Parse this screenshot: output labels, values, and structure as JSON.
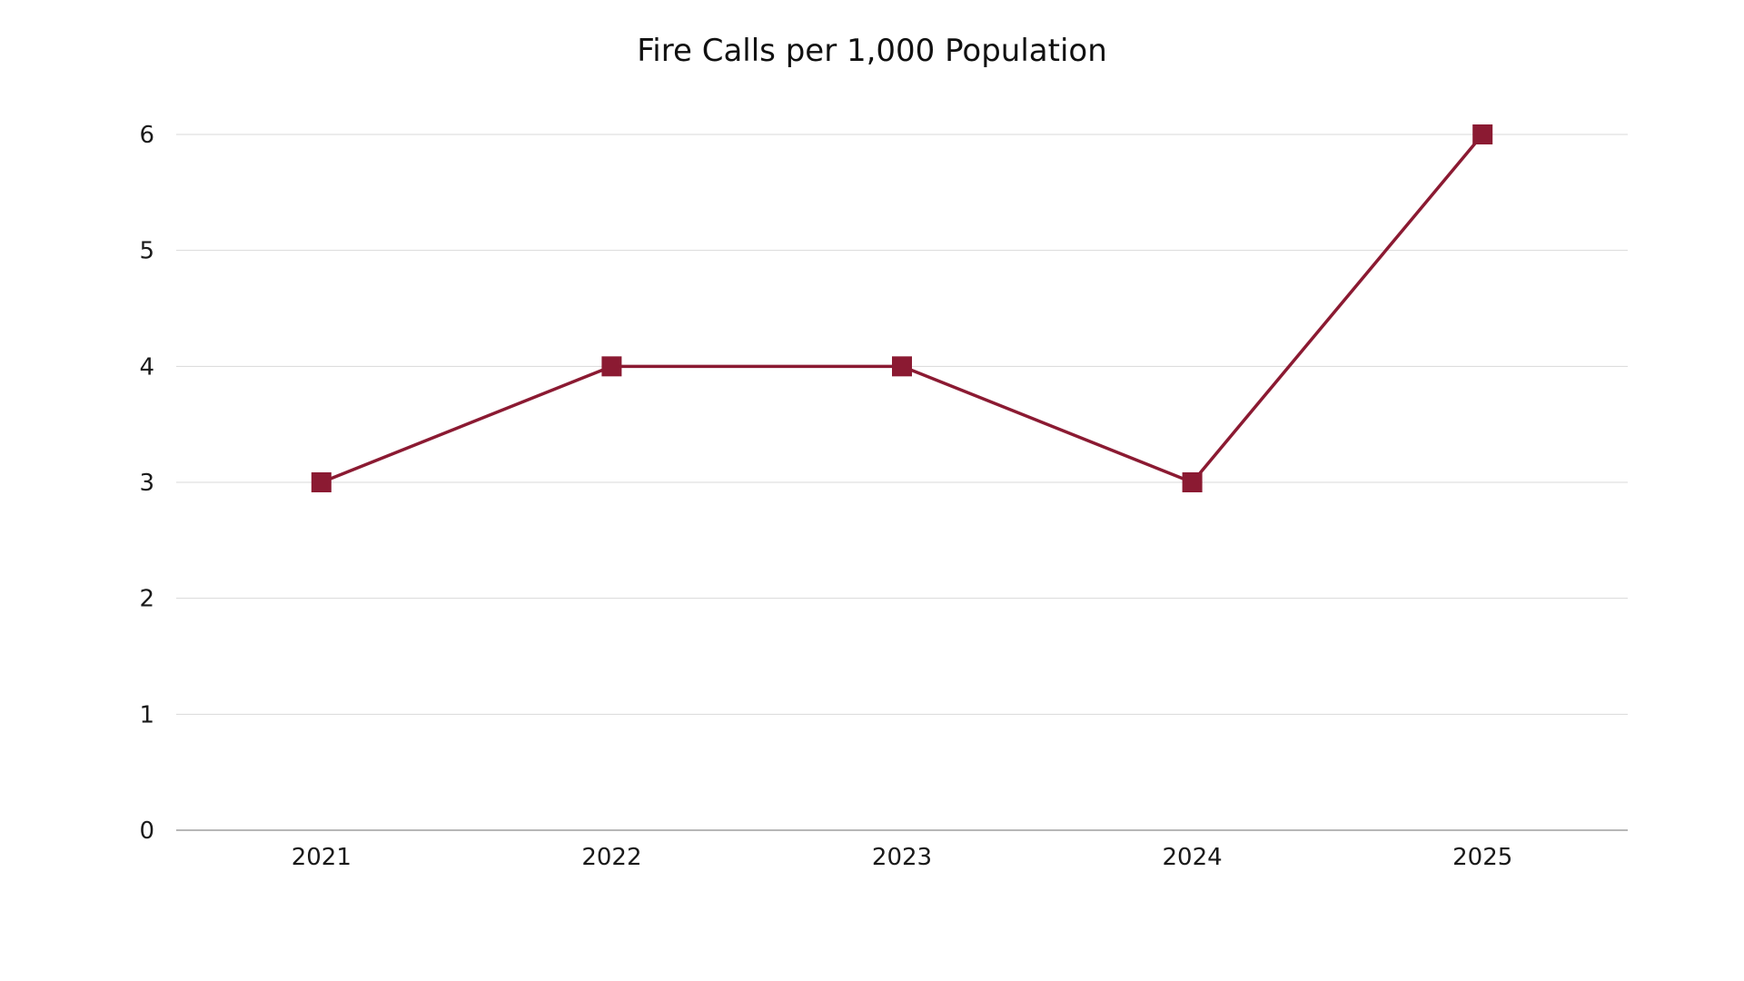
{
  "chart_data": {
    "type": "line",
    "title": "Fire Calls per 1,000 Population",
    "xlabel": "",
    "ylabel": "",
    "categories": [
      "2021",
      "2022",
      "2023",
      "2024",
      "2025"
    ],
    "series": [
      {
        "values": [
          3,
          4,
          4,
          3,
          6
        ],
        "color": "#8b1a32",
        "marker": "square"
      }
    ],
    "ylim": [
      0,
      6
    ],
    "yticks": [
      "0",
      "1",
      "2",
      "3",
      "4",
      "5",
      "6"
    ],
    "grid": true,
    "legend": "none"
  },
  "colors": {
    "gridline": "#d9d9d9",
    "axis": "#8c8c8c"
  }
}
